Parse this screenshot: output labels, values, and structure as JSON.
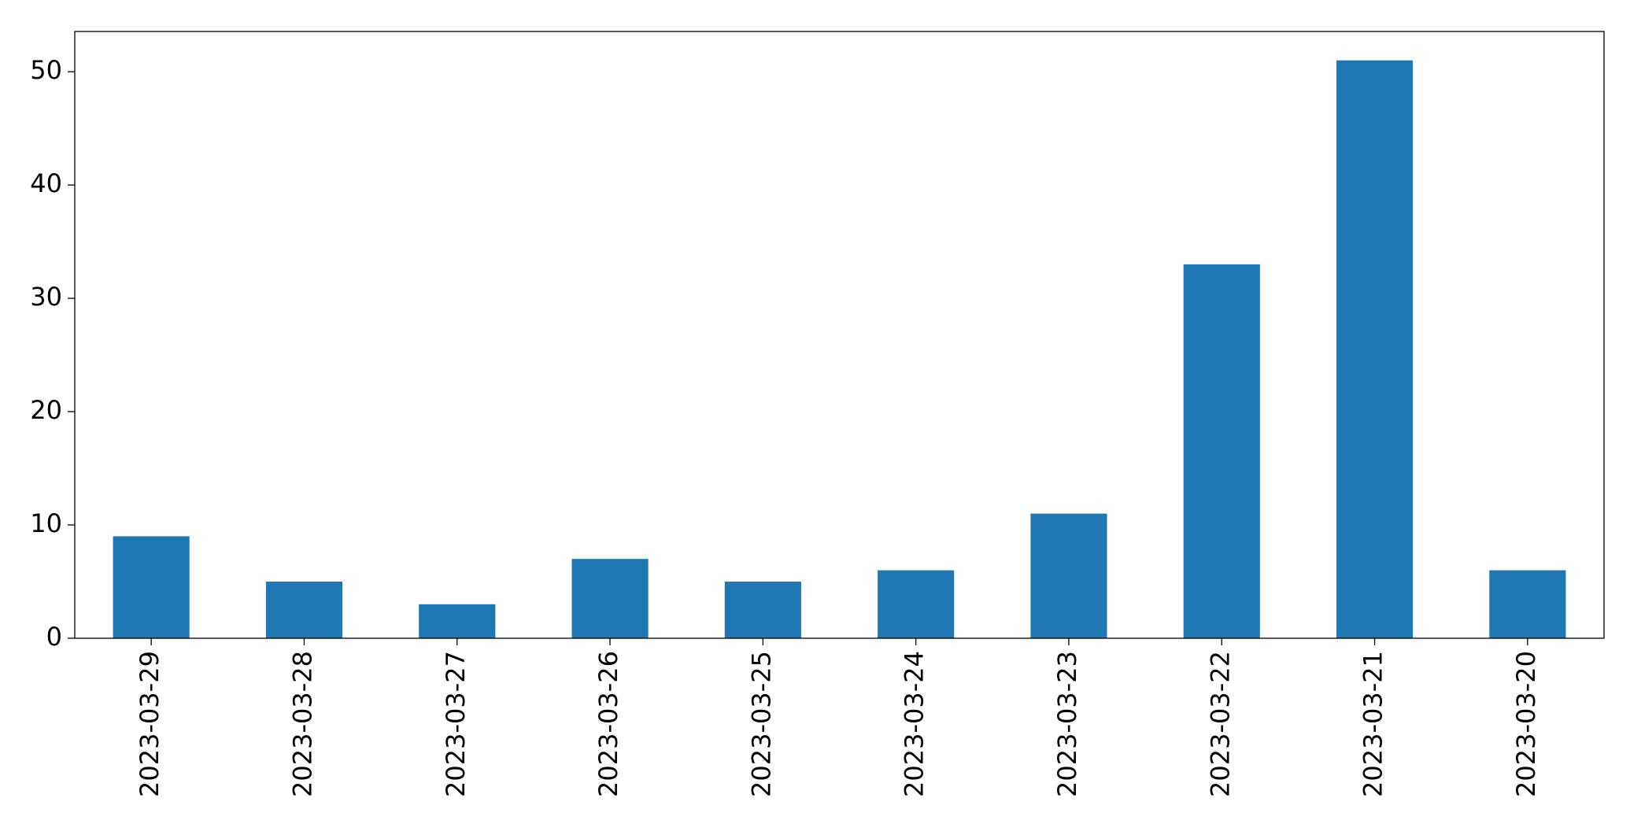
{
  "chart_data": {
    "type": "bar",
    "categories": [
      "2023-03-29",
      "2023-03-28",
      "2023-03-27",
      "2023-03-26",
      "2023-03-25",
      "2023-03-24",
      "2023-03-23",
      "2023-03-22",
      "2023-03-21",
      "2023-03-20"
    ],
    "values": [
      9,
      5,
      3,
      7,
      5,
      6,
      11,
      33,
      51,
      6
    ],
    "color": "#1f77b4",
    "ylim": [
      0,
      53.55
    ],
    "yticks": [
      0,
      10,
      20,
      30,
      40,
      50
    ],
    "grid": false
  }
}
